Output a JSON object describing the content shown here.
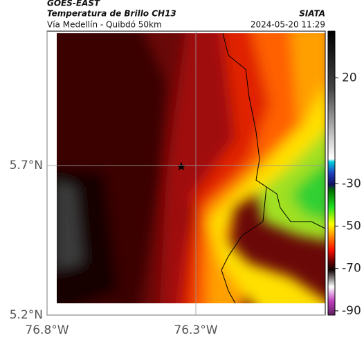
{
  "header": {
    "source": "GOES-EAST",
    "title": "Temperatura de Brillo CH13",
    "subtitle": "Vía Medellín - Quibdó 50km",
    "org": "SIATA",
    "datetime": "2024-05-20 11:29"
  },
  "map": {
    "lat_lim": [
      5.2,
      6.15
    ],
    "lon_lim": [
      -76.8,
      -75.865
    ],
    "lat_ticks": [
      {
        "value": 5.7,
        "label": "5.7°N"
      },
      {
        "value": 5.2,
        "label": "5.2°N"
      }
    ],
    "lon_ticks": [
      {
        "value": -76.8,
        "label": "76.8°W"
      },
      {
        "value": -76.3,
        "label": "76.3°W"
      }
    ],
    "grid": true
  },
  "colorbar": {
    "lim": [
      -92,
      42
    ],
    "ticks": [
      20,
      -30,
      -50,
      -70,
      -90
    ]
  }
}
